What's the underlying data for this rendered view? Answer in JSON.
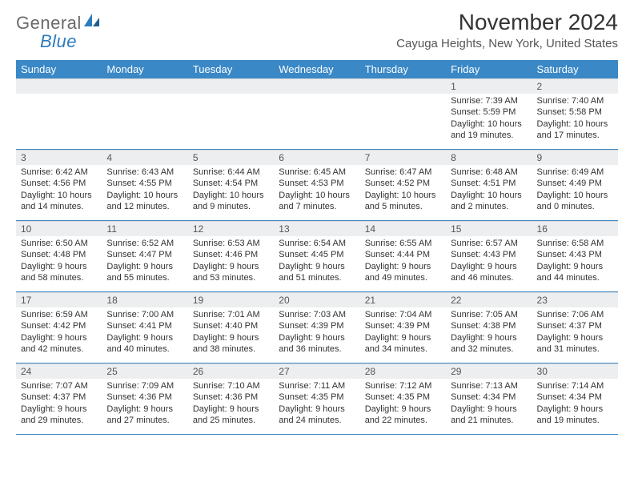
{
  "logo": {
    "word1": "General",
    "word2": "Blue"
  },
  "title": "November 2024",
  "location": "Cayuga Heights, New York, United States",
  "colors": {
    "header_bg": "#3a88c6",
    "header_text": "#ffffff",
    "daynum_bg": "#eceeef",
    "rule": "#3a88c6",
    "logo_gray": "#6a6a6a",
    "logo_blue": "#2b7bbf",
    "body_text": "#333333"
  },
  "day_headers": [
    "Sunday",
    "Monday",
    "Tuesday",
    "Wednesday",
    "Thursday",
    "Friday",
    "Saturday"
  ],
  "weeks": [
    [
      {
        "n": "",
        "lines": []
      },
      {
        "n": "",
        "lines": []
      },
      {
        "n": "",
        "lines": []
      },
      {
        "n": "",
        "lines": []
      },
      {
        "n": "",
        "lines": []
      },
      {
        "n": "1",
        "lines": [
          "Sunrise: 7:39 AM",
          "Sunset: 5:59 PM",
          "Daylight: 10 hours",
          "and 19 minutes."
        ]
      },
      {
        "n": "2",
        "lines": [
          "Sunrise: 7:40 AM",
          "Sunset: 5:58 PM",
          "Daylight: 10 hours",
          "and 17 minutes."
        ]
      }
    ],
    [
      {
        "n": "3",
        "lines": [
          "Sunrise: 6:42 AM",
          "Sunset: 4:56 PM",
          "Daylight: 10 hours",
          "and 14 minutes."
        ]
      },
      {
        "n": "4",
        "lines": [
          "Sunrise: 6:43 AM",
          "Sunset: 4:55 PM",
          "Daylight: 10 hours",
          "and 12 minutes."
        ]
      },
      {
        "n": "5",
        "lines": [
          "Sunrise: 6:44 AM",
          "Sunset: 4:54 PM",
          "Daylight: 10 hours",
          "and 9 minutes."
        ]
      },
      {
        "n": "6",
        "lines": [
          "Sunrise: 6:45 AM",
          "Sunset: 4:53 PM",
          "Daylight: 10 hours",
          "and 7 minutes."
        ]
      },
      {
        "n": "7",
        "lines": [
          "Sunrise: 6:47 AM",
          "Sunset: 4:52 PM",
          "Daylight: 10 hours",
          "and 5 minutes."
        ]
      },
      {
        "n": "8",
        "lines": [
          "Sunrise: 6:48 AM",
          "Sunset: 4:51 PM",
          "Daylight: 10 hours",
          "and 2 minutes."
        ]
      },
      {
        "n": "9",
        "lines": [
          "Sunrise: 6:49 AM",
          "Sunset: 4:49 PM",
          "Daylight: 10 hours",
          "and 0 minutes."
        ]
      }
    ],
    [
      {
        "n": "10",
        "lines": [
          "Sunrise: 6:50 AM",
          "Sunset: 4:48 PM",
          "Daylight: 9 hours",
          "and 58 minutes."
        ]
      },
      {
        "n": "11",
        "lines": [
          "Sunrise: 6:52 AM",
          "Sunset: 4:47 PM",
          "Daylight: 9 hours",
          "and 55 minutes."
        ]
      },
      {
        "n": "12",
        "lines": [
          "Sunrise: 6:53 AM",
          "Sunset: 4:46 PM",
          "Daylight: 9 hours",
          "and 53 minutes."
        ]
      },
      {
        "n": "13",
        "lines": [
          "Sunrise: 6:54 AM",
          "Sunset: 4:45 PM",
          "Daylight: 9 hours",
          "and 51 minutes."
        ]
      },
      {
        "n": "14",
        "lines": [
          "Sunrise: 6:55 AM",
          "Sunset: 4:44 PM",
          "Daylight: 9 hours",
          "and 49 minutes."
        ]
      },
      {
        "n": "15",
        "lines": [
          "Sunrise: 6:57 AM",
          "Sunset: 4:43 PM",
          "Daylight: 9 hours",
          "and 46 minutes."
        ]
      },
      {
        "n": "16",
        "lines": [
          "Sunrise: 6:58 AM",
          "Sunset: 4:43 PM",
          "Daylight: 9 hours",
          "and 44 minutes."
        ]
      }
    ],
    [
      {
        "n": "17",
        "lines": [
          "Sunrise: 6:59 AM",
          "Sunset: 4:42 PM",
          "Daylight: 9 hours",
          "and 42 minutes."
        ]
      },
      {
        "n": "18",
        "lines": [
          "Sunrise: 7:00 AM",
          "Sunset: 4:41 PM",
          "Daylight: 9 hours",
          "and 40 minutes."
        ]
      },
      {
        "n": "19",
        "lines": [
          "Sunrise: 7:01 AM",
          "Sunset: 4:40 PM",
          "Daylight: 9 hours",
          "and 38 minutes."
        ]
      },
      {
        "n": "20",
        "lines": [
          "Sunrise: 7:03 AM",
          "Sunset: 4:39 PM",
          "Daylight: 9 hours",
          "and 36 minutes."
        ]
      },
      {
        "n": "21",
        "lines": [
          "Sunrise: 7:04 AM",
          "Sunset: 4:39 PM",
          "Daylight: 9 hours",
          "and 34 minutes."
        ]
      },
      {
        "n": "22",
        "lines": [
          "Sunrise: 7:05 AM",
          "Sunset: 4:38 PM",
          "Daylight: 9 hours",
          "and 32 minutes."
        ]
      },
      {
        "n": "23",
        "lines": [
          "Sunrise: 7:06 AM",
          "Sunset: 4:37 PM",
          "Daylight: 9 hours",
          "and 31 minutes."
        ]
      }
    ],
    [
      {
        "n": "24",
        "lines": [
          "Sunrise: 7:07 AM",
          "Sunset: 4:37 PM",
          "Daylight: 9 hours",
          "and 29 minutes."
        ]
      },
      {
        "n": "25",
        "lines": [
          "Sunrise: 7:09 AM",
          "Sunset: 4:36 PM",
          "Daylight: 9 hours",
          "and 27 minutes."
        ]
      },
      {
        "n": "26",
        "lines": [
          "Sunrise: 7:10 AM",
          "Sunset: 4:36 PM",
          "Daylight: 9 hours",
          "and 25 minutes."
        ]
      },
      {
        "n": "27",
        "lines": [
          "Sunrise: 7:11 AM",
          "Sunset: 4:35 PM",
          "Daylight: 9 hours",
          "and 24 minutes."
        ]
      },
      {
        "n": "28",
        "lines": [
          "Sunrise: 7:12 AM",
          "Sunset: 4:35 PM",
          "Daylight: 9 hours",
          "and 22 minutes."
        ]
      },
      {
        "n": "29",
        "lines": [
          "Sunrise: 7:13 AM",
          "Sunset: 4:34 PM",
          "Daylight: 9 hours",
          "and 21 minutes."
        ]
      },
      {
        "n": "30",
        "lines": [
          "Sunrise: 7:14 AM",
          "Sunset: 4:34 PM",
          "Daylight: 9 hours",
          "and 19 minutes."
        ]
      }
    ]
  ]
}
